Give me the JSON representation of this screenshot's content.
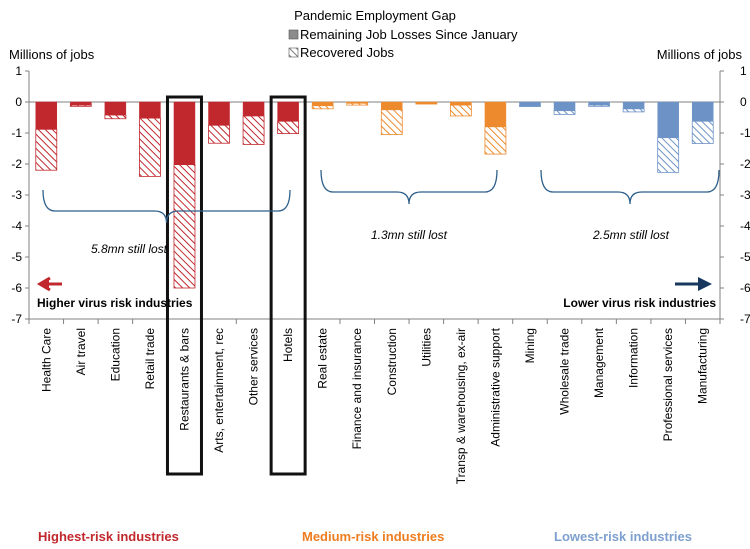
{
  "chart_data": {
    "type": "bar",
    "stacked": true,
    "title": "Pandemic Employment Gap",
    "ylabel_left": "Millions of jobs",
    "ylabel_right": "Millions of jobs",
    "ylim": [
      -7,
      1
    ],
    "yticks": [
      "1",
      "0",
      "-1",
      "-2",
      "-3",
      "-4",
      "-5",
      "-6",
      "-7"
    ],
    "legend": {
      "placement": "top-center",
      "remaining_label": "Remaining Job Losses Since January",
      "recovered_label": "Recovered Jobs"
    },
    "categories": [
      "Health Care",
      "Air travel",
      "Education",
      "Retail trade",
      "Restaurants & bars",
      "Arts, entertainment, rec",
      "Other services",
      "Hotels",
      "Real estate",
      "Finance and insurance",
      "Construction",
      "Utilities",
      "Transp & warehousing, ex-air",
      "Administrative support",
      "Mining",
      "Wholesale trade",
      "Management",
      "Information",
      "Professional services",
      "Manufacturing"
    ],
    "series": [
      {
        "name": "Remaining Job Losses Since January",
        "values": [
          -0.88,
          -0.1,
          -0.42,
          -0.52,
          -2.02,
          -0.75,
          -0.45,
          -0.62,
          -0.12,
          -0.04,
          -0.25,
          -0.04,
          -0.1,
          -0.8,
          -0.12,
          -0.28,
          -0.1,
          -0.22,
          -1.15,
          -0.62
        ]
      },
      {
        "name": "Recovered Jobs",
        "values": [
          -1.32,
          -0.04,
          -0.12,
          -1.88,
          -3.98,
          -0.58,
          -0.92,
          -0.4,
          -0.1,
          -0.06,
          -0.8,
          -0.02,
          -0.35,
          -0.88,
          -0.02,
          -0.12,
          -0.04,
          -0.1,
          -1.12,
          -0.72
        ]
      }
    ],
    "risk_group_of_category": [
      "high",
      "high",
      "high",
      "high",
      "high",
      "high",
      "high",
      "high",
      "medium",
      "medium",
      "medium",
      "medium",
      "medium",
      "medium",
      "low",
      "low",
      "low",
      "low",
      "low",
      "low"
    ],
    "highlighted_categories": [
      "Restaurants & bars",
      "Hotels"
    ],
    "annotations": {
      "high_still_lost": "5.8mn still lost",
      "medium_still_lost": "1.3mn still lost",
      "low_still_lost": "2.5mn still lost",
      "higher_risk_label": "Higher virus risk industries",
      "lower_risk_label": "Lower virus risk industries"
    },
    "group_labels": {
      "high": "Highest-risk  industries",
      "medium": "Medium-risk  industries",
      "low": "Lowest-risk  industries"
    },
    "colors": {
      "high": "#c0282e",
      "medium": "#ee8a2e",
      "low": "#6d93c6",
      "legend_solid": "#8c8c8c",
      "text_high": "#c0282e",
      "text_medium": "#ee7d20",
      "text_low": "#7ea0cf",
      "arrow_left": "#c0282e",
      "arrow_right": "#17375e",
      "brace": "#2e5f8a"
    }
  }
}
